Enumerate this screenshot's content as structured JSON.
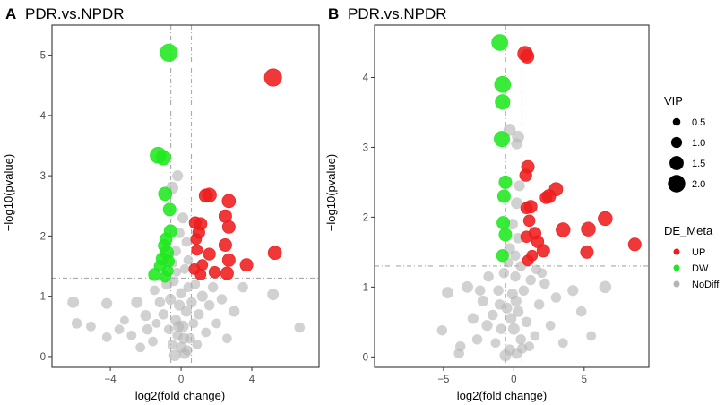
{
  "chart_data": [
    {
      "type": "scatter",
      "panel": "A",
      "title": "PDR.vs.NPDR",
      "xlabel": "log2(fold change)",
      "ylabel": "−log10(pvalue)",
      "xlim": [
        -7.3,
        7.8
      ],
      "ylim": [
        -0.18,
        5.5
      ],
      "xticks": [
        -4,
        0,
        4
      ],
      "yticks": [
        0,
        1,
        2,
        3,
        4,
        5
      ],
      "xtick_labels": [
        "−4",
        "0",
        "4"
      ],
      "ytick_labels": [
        "0",
        "1",
        "2",
        "3",
        "4",
        "5"
      ],
      "thresholds": {
        "vlines": [
          -0.58,
          0.58
        ],
        "hline": 1.3
      },
      "points": [
        [
          -0.7,
          5.04,
          2.0,
          "DW"
        ],
        [
          -1.3,
          3.34,
          1.8,
          "DW"
        ],
        [
          -1.0,
          3.3,
          1.6,
          "DW"
        ],
        [
          -0.9,
          2.7,
          1.4,
          "DW"
        ],
        [
          -0.65,
          2.44,
          1.3,
          "DW"
        ],
        [
          -0.6,
          2.08,
          1.3,
          "DW"
        ],
        [
          -0.85,
          1.95,
          1.2,
          "DW"
        ],
        [
          -0.95,
          1.84,
          1.2,
          "DW"
        ],
        [
          -0.8,
          1.72,
          1.4,
          "DW"
        ],
        [
          -1.05,
          1.62,
          1.3,
          "DW"
        ],
        [
          -0.7,
          1.58,
          1.1,
          "DW"
        ],
        [
          -1.2,
          1.5,
          1.1,
          "DW"
        ],
        [
          -1.5,
          1.36,
          1.2,
          "DW"
        ],
        [
          -0.75,
          1.42,
          1.0,
          "DW"
        ],
        [
          -0.9,
          1.32,
          1.0,
          "DW"
        ],
        [
          5.2,
          4.63,
          2.0,
          "UP"
        ],
        [
          1.6,
          2.68,
          1.5,
          "UP"
        ],
        [
          1.4,
          2.67,
          1.4,
          "UP"
        ],
        [
          2.7,
          2.58,
          1.4,
          "UP"
        ],
        [
          2.5,
          2.33,
          1.3,
          "UP"
        ],
        [
          0.8,
          2.22,
          1.2,
          "UP"
        ],
        [
          1.1,
          2.2,
          1.3,
          "UP"
        ],
        [
          2.7,
          2.15,
          1.3,
          "UP"
        ],
        [
          1.0,
          2.06,
          1.2,
          "UP"
        ],
        [
          0.85,
          1.95,
          1.0,
          "UP"
        ],
        [
          2.5,
          1.85,
          1.3,
          "UP"
        ],
        [
          0.9,
          1.77,
          1.0,
          "UP"
        ],
        [
          5.3,
          1.72,
          1.4,
          "UP"
        ],
        [
          1.6,
          1.7,
          1.2,
          "UP"
        ],
        [
          2.7,
          1.6,
          1.3,
          "UP"
        ],
        [
          1.2,
          1.52,
          1.0,
          "UP"
        ],
        [
          3.7,
          1.52,
          1.3,
          "UP"
        ],
        [
          0.75,
          1.45,
          1.0,
          "UP"
        ],
        [
          1.9,
          1.4,
          1.1,
          "UP"
        ],
        [
          2.6,
          1.38,
          1.3,
          "UP"
        ],
        [
          1.1,
          1.36,
          1.0,
          "UP"
        ],
        [
          -0.2,
          3.0,
          1.0,
          "NoDiff"
        ],
        [
          -0.5,
          2.8,
          1.2,
          "NoDiff"
        ],
        [
          0.1,
          2.3,
          1.0,
          "NoDiff"
        ],
        [
          -0.1,
          2.05,
          0.9,
          "NoDiff"
        ],
        [
          0.3,
          1.9,
          0.8,
          "NoDiff"
        ],
        [
          -0.3,
          1.75,
          0.9,
          "NoDiff"
        ],
        [
          0.4,
          1.6,
          0.8,
          "NoDiff"
        ],
        [
          -0.45,
          1.55,
          0.7,
          "NoDiff"
        ],
        [
          0.2,
          1.45,
          0.8,
          "NoDiff"
        ],
        [
          -0.25,
          1.4,
          0.7,
          "NoDiff"
        ],
        [
          -6.1,
          0.9,
          1.1,
          "NoDiff"
        ],
        [
          -4.2,
          0.88,
          1.0,
          "NoDiff"
        ],
        [
          -5.9,
          0.55,
          0.9,
          "NoDiff"
        ],
        [
          -5.1,
          0.5,
          0.8,
          "NoDiff"
        ],
        [
          -4.2,
          0.32,
          0.8,
          "NoDiff"
        ],
        [
          -2.5,
          0.9,
          1.1,
          "NoDiff"
        ],
        [
          -2.0,
          0.68,
          1.0,
          "NoDiff"
        ],
        [
          -3.5,
          0.45,
          0.8,
          "NoDiff"
        ],
        [
          -2.8,
          0.35,
          0.8,
          "NoDiff"
        ],
        [
          -3.2,
          0.6,
          0.7,
          "NoDiff"
        ],
        [
          -1.6,
          0.25,
          0.8,
          "NoDiff"
        ],
        [
          -1.9,
          0.45,
          0.9,
          "NoDiff"
        ],
        [
          -2.3,
          0.15,
          0.8,
          "NoDiff"
        ],
        [
          -1.4,
          0.55,
          0.7,
          "NoDiff"
        ],
        [
          -1.5,
          1.1,
          0.8,
          "NoDiff"
        ],
        [
          -1.2,
          0.9,
          0.9,
          "NoDiff"
        ],
        [
          -1.0,
          0.7,
          0.9,
          "NoDiff"
        ],
        [
          -0.8,
          1.2,
          1.0,
          "NoDiff"
        ],
        [
          -0.7,
          0.45,
          0.8,
          "NoDiff"
        ],
        [
          -0.6,
          0.95,
          1.0,
          "NoDiff"
        ],
        [
          -0.5,
          0.2,
          0.8,
          "NoDiff"
        ],
        [
          -0.4,
          1.25,
          0.8,
          "NoDiff"
        ],
        [
          -0.3,
          0.6,
          1.0,
          "NoDiff"
        ],
        [
          -0.2,
          0.35,
          0.9,
          "NoDiff"
        ],
        [
          -0.1,
          0.85,
          1.0,
          "NoDiff"
        ],
        [
          0.0,
          0.15,
          1.0,
          "NoDiff"
        ],
        [
          0.0,
          1.05,
          0.9,
          "NoDiff"
        ],
        [
          0.1,
          0.5,
          1.1,
          "NoDiff"
        ],
        [
          0.2,
          0.05,
          1.0,
          "NoDiff"
        ],
        [
          0.3,
          0.75,
          1.0,
          "NoDiff"
        ],
        [
          0.4,
          1.15,
          0.8,
          "NoDiff"
        ],
        [
          0.5,
          0.3,
          0.9,
          "NoDiff"
        ],
        [
          0.6,
          0.9,
          0.9,
          "NoDiff"
        ],
        [
          0.7,
          0.55,
          0.8,
          "NoDiff"
        ],
        [
          0.8,
          1.2,
          0.8,
          "NoDiff"
        ],
        [
          0.9,
          0.2,
          0.8,
          "NoDiff"
        ],
        [
          1.0,
          0.7,
          0.9,
          "NoDiff"
        ],
        [
          1.2,
          1.0,
          1.0,
          "NoDiff"
        ],
        [
          1.4,
          0.4,
          0.8,
          "NoDiff"
        ],
        [
          1.6,
          0.85,
          0.9,
          "NoDiff"
        ],
        [
          1.8,
          1.15,
          0.9,
          "NoDiff"
        ],
        [
          2.0,
          0.55,
          0.8,
          "NoDiff"
        ],
        [
          2.3,
          0.95,
          0.9,
          "NoDiff"
        ],
        [
          2.6,
          0.3,
          0.8,
          "NoDiff"
        ],
        [
          3.0,
          0.75,
          1.0,
          "NoDiff"
        ],
        [
          3.5,
          1.15,
          0.9,
          "NoDiff"
        ],
        [
          5.2,
          1.03,
          1.1,
          "NoDiff"
        ],
        [
          6.7,
          0.48,
          0.9,
          "NoDiff"
        ],
        [
          -0.35,
          0.02,
          1.1,
          "NoDiff"
        ],
        [
          0.35,
          0.1,
          0.9,
          "NoDiff"
        ],
        [
          -0.15,
          0.5,
          1.0,
          "NoDiff"
        ],
        [
          0.15,
          0.3,
          1.0,
          "NoDiff"
        ]
      ]
    },
    {
      "type": "scatter",
      "panel": "B",
      "title": "PDR.vs.NPDR",
      "xlabel": "log2(fold change)",
      "ylabel": "−log10(pvalue)",
      "xlim": [
        -9.9,
        9.6
      ],
      "ylim": [
        -0.15,
        4.75
      ],
      "xticks": [
        -5,
        0,
        5
      ],
      "yticks": [
        0,
        1,
        2,
        3,
        4
      ],
      "xtick_labels": [
        "−5",
        "0",
        "5"
      ],
      "ytick_labels": [
        "0",
        "1",
        "2",
        "3",
        "4"
      ],
      "thresholds": {
        "vlines": [
          -0.58,
          0.58
        ],
        "hline": 1.3
      },
      "points": [
        [
          -1.0,
          4.5,
          1.8,
          "DW"
        ],
        [
          -0.8,
          3.9,
          1.8,
          "DW"
        ],
        [
          -0.8,
          3.65,
          1.6,
          "DW"
        ],
        [
          -0.85,
          3.12,
          1.7,
          "DW"
        ],
        [
          -0.6,
          2.5,
          1.3,
          "DW"
        ],
        [
          -0.7,
          2.3,
          1.3,
          "DW"
        ],
        [
          -0.75,
          1.92,
          1.3,
          "DW"
        ],
        [
          -0.6,
          1.75,
          1.3,
          "DW"
        ],
        [
          -0.8,
          1.45,
          1.2,
          "DW"
        ],
        [
          0.8,
          4.34,
          1.6,
          "UP"
        ],
        [
          0.95,
          4.3,
          1.4,
          "UP"
        ],
        [
          1.0,
          2.72,
          1.3,
          "UP"
        ],
        [
          0.85,
          2.6,
          1.2,
          "UP"
        ],
        [
          3.0,
          2.4,
          1.4,
          "UP"
        ],
        [
          2.5,
          2.3,
          1.4,
          "UP"
        ],
        [
          2.3,
          2.28,
          1.2,
          "UP"
        ],
        [
          1.2,
          2.15,
          1.3,
          "UP"
        ],
        [
          0.9,
          2.13,
          1.1,
          "UP"
        ],
        [
          6.5,
          1.98,
          1.5,
          "UP"
        ],
        [
          1.1,
          1.95,
          1.1,
          "UP"
        ],
        [
          3.5,
          1.82,
          1.5,
          "UP"
        ],
        [
          5.3,
          1.83,
          1.5,
          "UP"
        ],
        [
          1.5,
          1.77,
          1.2,
          "UP"
        ],
        [
          0.9,
          1.72,
          1.1,
          "UP"
        ],
        [
          1.7,
          1.65,
          1.2,
          "UP"
        ],
        [
          8.6,
          1.61,
          1.3,
          "UP"
        ],
        [
          2.1,
          1.52,
          1.3,
          "UP"
        ],
        [
          5.2,
          1.5,
          1.3,
          "UP"
        ],
        [
          1.3,
          1.45,
          1.0,
          "UP"
        ],
        [
          1.0,
          1.38,
          1.0,
          "UP"
        ],
        [
          -0.3,
          3.25,
          1.2,
          "NoDiff"
        ],
        [
          0.3,
          3.15,
          1.2,
          "NoDiff"
        ],
        [
          0.2,
          3.05,
          1.0,
          "NoDiff"
        ],
        [
          0.4,
          2.45,
          1.0,
          "NoDiff"
        ],
        [
          0.2,
          2.2,
          1.1,
          "NoDiff"
        ],
        [
          -0.1,
          1.9,
          1.0,
          "NoDiff"
        ],
        [
          0.3,
          1.7,
          0.9,
          "NoDiff"
        ],
        [
          -0.3,
          1.55,
          1.0,
          "NoDiff"
        ],
        [
          0.1,
          1.45,
          0.9,
          "NoDiff"
        ],
        [
          -0.4,
          1.35,
          0.8,
          "NoDiff"
        ],
        [
          0.5,
          1.3,
          0.9,
          "NoDiff"
        ],
        [
          -4.7,
          0.92,
          1.1,
          "NoDiff"
        ],
        [
          -5.1,
          0.38,
          0.9,
          "NoDiff"
        ],
        [
          -3.3,
          1.0,
          1.1,
          "NoDiff"
        ],
        [
          -2.9,
          0.55,
          1.0,
          "NoDiff"
        ],
        [
          -3.8,
          0.15,
          0.9,
          "NoDiff"
        ],
        [
          -3.9,
          0.05,
          0.9,
          "NoDiff"
        ],
        [
          -2.6,
          0.25,
          0.9,
          "NoDiff"
        ],
        [
          -2.2,
          0.8,
          1.0,
          "NoDiff"
        ],
        [
          -1.9,
          0.45,
          1.0,
          "NoDiff"
        ],
        [
          -1.8,
          1.15,
          0.9,
          "NoDiff"
        ],
        [
          -1.5,
          0.6,
          0.9,
          "NoDiff"
        ],
        [
          -1.3,
          0.2,
          0.8,
          "NoDiff"
        ],
        [
          -1.1,
          0.95,
          0.9,
          "NoDiff"
        ],
        [
          -0.9,
          0.4,
          0.9,
          "NoDiff"
        ],
        [
          -0.7,
          1.2,
          0.9,
          "NoDiff"
        ],
        [
          -0.5,
          0.7,
          1.0,
          "NoDiff"
        ],
        [
          -0.3,
          0.1,
          1.0,
          "NoDiff"
        ],
        [
          -0.1,
          0.9,
          1.0,
          "NoDiff"
        ],
        [
          0.0,
          0.4,
          1.1,
          "NoDiff"
        ],
        [
          0.1,
          1.15,
          0.9,
          "NoDiff"
        ],
        [
          0.2,
          0.05,
          1.0,
          "NoDiff"
        ],
        [
          0.3,
          0.65,
          1.0,
          "NoDiff"
        ],
        [
          0.5,
          0.25,
          0.9,
          "NoDiff"
        ],
        [
          0.7,
          0.95,
          0.9,
          "NoDiff"
        ],
        [
          0.9,
          0.5,
          0.9,
          "NoDiff"
        ],
        [
          1.2,
          1.1,
          0.9,
          "NoDiff"
        ],
        [
          1.5,
          0.3,
          0.8,
          "NoDiff"
        ],
        [
          1.8,
          0.75,
          0.9,
          "NoDiff"
        ],
        [
          2.2,
          1.05,
          0.9,
          "NoDiff"
        ],
        [
          2.6,
          0.45,
          0.8,
          "NoDiff"
        ],
        [
          3.0,
          0.85,
          0.9,
          "NoDiff"
        ],
        [
          3.5,
          0.2,
          0.8,
          "NoDiff"
        ],
        [
          4.2,
          0.95,
          1.0,
          "NoDiff"
        ],
        [
          4.8,
          0.65,
          0.9,
          "NoDiff"
        ],
        [
          6.5,
          1.0,
          1.2,
          "NoDiff"
        ],
        [
          5.5,
          0.3,
          0.8,
          "NoDiff"
        ],
        [
          -0.6,
          0.02,
          1.1,
          "NoDiff"
        ],
        [
          0.6,
          0.12,
          0.9,
          "NoDiff"
        ],
        [
          -0.2,
          0.55,
          1.0,
          "NoDiff"
        ],
        [
          0.15,
          0.8,
          1.0,
          "NoDiff"
        ],
        [
          -1.0,
          0.75,
          0.9,
          "NoDiff"
        ],
        [
          1.1,
          0.15,
          0.8,
          "NoDiff"
        ],
        [
          2.0,
          1.2,
          0.8,
          "NoDiff"
        ],
        [
          -2.4,
          0.95,
          0.9,
          "NoDiff"
        ],
        [
          1.6,
          1.25,
          0.8,
          "NoDiff"
        ]
      ]
    }
  ],
  "panels": {
    "a": {
      "letter": "A",
      "title": "PDR.vs.NPDR"
    },
    "b": {
      "letter": "B",
      "title": "PDR.vs.NPDR"
    }
  },
  "legend": {
    "vip_title": "VIP",
    "vip_sizes": [
      {
        "label": "0.5",
        "value": 0.5
      },
      {
        "label": "1.0",
        "value": 1.0
      },
      {
        "label": "1.5",
        "value": 1.5
      },
      {
        "label": "2.0",
        "value": 2.0
      }
    ],
    "meta_title": "DE_Meta",
    "meta_items": [
      {
        "label": "UP",
        "color": "#ee1c1c"
      },
      {
        "label": "DW",
        "color": "#1fe81f"
      },
      {
        "label": "NoDiff",
        "color": "#b4b4b4"
      }
    ]
  },
  "colors": {
    "UP": "#ee1c1c",
    "DW": "#1fe81f",
    "NoDiff": "#b4b4b4",
    "threshold": "#a9a9a9",
    "frame": "#333333"
  }
}
